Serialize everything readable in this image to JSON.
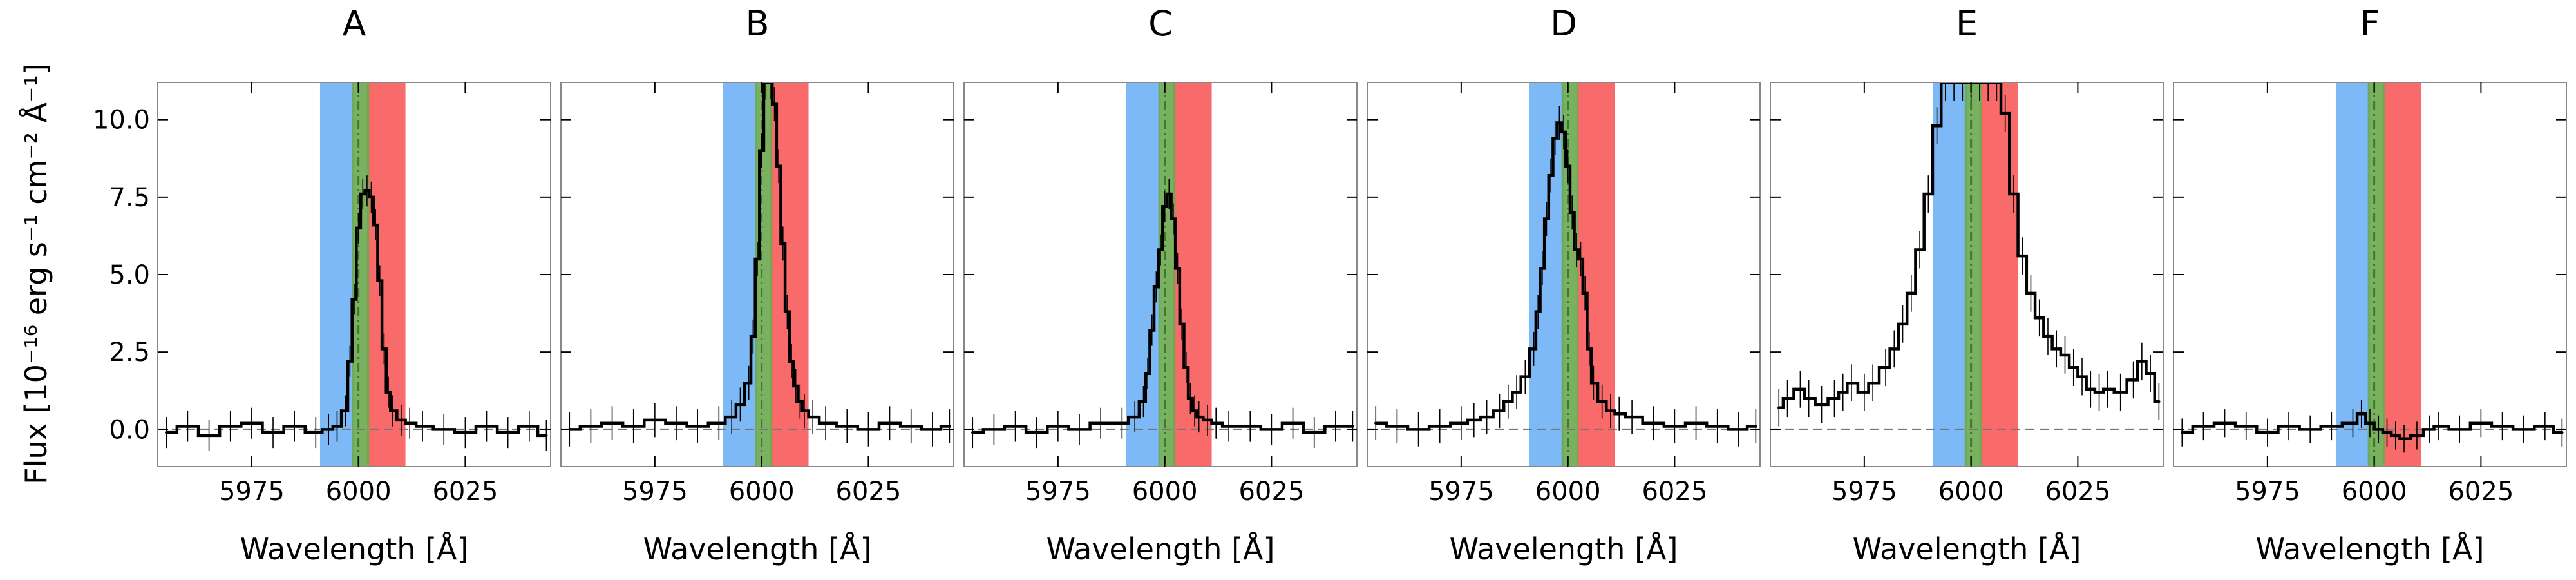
{
  "figure": {
    "ylabel": "Flux [10⁻¹⁶ erg s⁻¹ cm⁻² Å⁻¹]",
    "xlabel": "Wavelength [Å]"
  },
  "colors": {
    "blue_band": "#7db9f7",
    "green_band": "#6aa84f",
    "red_band": "#f96a6a",
    "line": "#000000",
    "zero_line": "#777777"
  },
  "chart_data": [
    {
      "type": "line",
      "title": "A",
      "xlabel": "Wavelength [Å]",
      "xlim": [
        5953,
        6045
      ],
      "ylim": [
        -1.2,
        11.2
      ],
      "xticks": [
        5975,
        6000,
        6025
      ],
      "yticks": [
        0.0,
        2.5,
        5.0,
        7.5,
        10.0
      ],
      "bands": {
        "blue": [
          5991,
          5999
        ],
        "green": [
          5998.5,
          6002.5
        ],
        "red": [
          6002,
          6011
        ]
      },
      "center_line": 6000,
      "zero_line": true,
      "series": [
        {
          "x": [
            5955,
            5960,
            5965,
            5970,
            5975,
            5980,
            5985,
            5990,
            5993,
            5995,
            5997,
            5998,
            5999,
            6000,
            6001,
            6002,
            6003,
            6004,
            6005,
            6006,
            6007,
            6008,
            6010,
            6012,
            6015,
            6020,
            6025,
            6030,
            6035,
            6040,
            6044
          ],
          "y": [
            -0.1,
            0.1,
            -0.2,
            0.1,
            0.2,
            -0.1,
            0.1,
            -0.1,
            0.0,
            0.1,
            0.6,
            2.2,
            4.2,
            6.5,
            7.6,
            7.7,
            7.5,
            6.6,
            4.8,
            2.6,
            1.2,
            0.6,
            0.3,
            0.2,
            0.1,
            0.0,
            -0.1,
            0.1,
            -0.1,
            0.1,
            -0.2
          ],
          "err": 0.5
        }
      ]
    },
    {
      "type": "line",
      "title": "B",
      "xlabel": "Wavelength [Å]",
      "xlim": [
        5953,
        6045
      ],
      "ylim": [
        -1.2,
        11.2
      ],
      "xticks": [
        5975,
        6000,
        6025
      ],
      "yticks": [
        0.0,
        2.5,
        5.0,
        7.5,
        10.0
      ],
      "bands": {
        "blue": [
          5991,
          5999
        ],
        "green": [
          5998.5,
          6002.5
        ],
        "red": [
          6002,
          6011
        ]
      },
      "center_line": 6000,
      "zero_line": true,
      "series": [
        {
          "x": [
            5955,
            5960,
            5965,
            5970,
            5975,
            5980,
            5985,
            5990,
            5993,
            5995,
            5997,
            5998,
            5999,
            6000,
            6001,
            6002,
            6003,
            6004,
            6005,
            6006,
            6007,
            6008,
            6009,
            6010,
            6012,
            6015,
            6020,
            6025,
            6030,
            6035,
            6040,
            6044
          ],
          "y": [
            0.0,
            0.1,
            0.2,
            0.1,
            0.3,
            0.2,
            0.1,
            0.2,
            0.4,
            0.8,
            1.5,
            3.0,
            5.5,
            9.0,
            11.2,
            11.2,
            10.5,
            8.5,
            6.0,
            3.8,
            2.2,
            1.4,
            0.9,
            0.6,
            0.4,
            0.2,
            0.1,
            0.0,
            0.2,
            0.1,
            0.0,
            0.1
          ],
          "err": 0.55
        }
      ]
    },
    {
      "type": "line",
      "title": "C",
      "xlabel": "Wavelength [Å]",
      "xlim": [
        5953,
        6045
      ],
      "ylim": [
        -1.2,
        11.2
      ],
      "xticks": [
        5975,
        6000,
        6025
      ],
      "yticks": [
        0.0,
        2.5,
        5.0,
        7.5,
        10.0
      ],
      "bands": {
        "blue": [
          5991,
          5999
        ],
        "green": [
          5998.5,
          6002.5
        ],
        "red": [
          6002,
          6011
        ]
      },
      "center_line": 6000,
      "zero_line": true,
      "series": [
        {
          "x": [
            5955,
            5960,
            5965,
            5970,
            5975,
            5980,
            5985,
            5990,
            5993,
            5995,
            5996,
            5997,
            5998,
            5999,
            6000,
            6001,
            6002,
            6003,
            6004,
            6005,
            6006,
            6007,
            6008,
            6010,
            6012,
            6015,
            6020,
            6025,
            6030,
            6035,
            6040,
            6044
          ],
          "y": [
            -0.1,
            0.0,
            0.1,
            -0.1,
            0.1,
            0.0,
            0.2,
            0.2,
            0.4,
            0.9,
            1.8,
            3.2,
            4.6,
            5.8,
            7.2,
            7.6,
            6.8,
            5.2,
            3.4,
            2.0,
            1.0,
            0.6,
            0.4,
            0.3,
            0.2,
            0.1,
            0.1,
            0.0,
            0.2,
            -0.1,
            0.1,
            0.1
          ],
          "err": 0.5
        }
      ]
    },
    {
      "type": "line",
      "title": "D",
      "xlabel": "Wavelength [Å]",
      "xlim": [
        5953,
        6045
      ],
      "ylim": [
        -1.2,
        11.2
      ],
      "xticks": [
        5975,
        6000,
        6025
      ],
      "yticks": [
        0.0,
        2.5,
        5.0,
        7.5,
        10.0
      ],
      "bands": {
        "blue": [
          5991,
          5999
        ],
        "green": [
          5998.5,
          6002.5
        ],
        "red": [
          6002,
          6011
        ]
      },
      "center_line": 6000,
      "zero_line": true,
      "series": [
        {
          "x": [
            5955,
            5960,
            5965,
            5970,
            5975,
            5978,
            5981,
            5984,
            5986,
            5988,
            5990,
            5992,
            5993,
            5994,
            5995,
            5996,
            5997,
            5998,
            5999,
            6000,
            6001,
            6002,
            6003,
            6004,
            6005,
            6006,
            6008,
            6010,
            6012,
            6015,
            6020,
            6025,
            6030,
            6035,
            6040,
            6044
          ],
          "y": [
            0.2,
            0.1,
            0.0,
            0.1,
            0.2,
            0.3,
            0.4,
            0.6,
            0.9,
            1.2,
            1.7,
            2.6,
            3.8,
            5.2,
            6.8,
            8.2,
            9.4,
            9.9,
            9.6,
            8.5,
            7.0,
            5.8,
            5.5,
            4.4,
            2.6,
            1.5,
            0.9,
            0.6,
            0.5,
            0.4,
            0.2,
            0.1,
            0.2,
            0.1,
            0.0,
            0.1
          ],
          "err": 0.55
        }
      ]
    },
    {
      "type": "line",
      "title": "E",
      "xlabel": "Wavelength [Å]",
      "xlim": [
        5953,
        6045
      ],
      "ylim": [
        -1.2,
        11.2
      ],
      "xticks": [
        5975,
        6000,
        6025
      ],
      "yticks": [
        0.0,
        2.5,
        5.0,
        7.5,
        10.0
      ],
      "bands": {
        "blue": [
          5991,
          5999
        ],
        "green": [
          5998.5,
          6002.5
        ],
        "red": [
          6002,
          6011
        ]
      },
      "center_line": 6000,
      "zero_line": true,
      "series": [
        {
          "x": [
            5955,
            5957,
            5960,
            5962,
            5965,
            5968,
            5970,
            5972,
            5975,
            5977,
            5980,
            5982,
            5984,
            5986,
            5988,
            5990,
            5992,
            5994,
            5996,
            5998,
            6000,
            6002,
            6004,
            6006,
            6008,
            6010,
            6012,
            6014,
            6016,
            6018,
            6020,
            6022,
            6024,
            6026,
            6028,
            6030,
            6032,
            6035,
            6038,
            6040,
            6042,
            6044
          ],
          "y": [
            0.7,
            1.0,
            1.3,
            1.0,
            0.8,
            1.0,
            1.2,
            1.5,
            1.2,
            1.5,
            2.0,
            2.6,
            3.4,
            4.4,
            5.8,
            7.6,
            9.8,
            11.2,
            11.2,
            11.2,
            11.2,
            11.2,
            11.2,
            11.2,
            10.2,
            7.6,
            5.6,
            4.4,
            3.6,
            3.0,
            2.6,
            2.4,
            2.0,
            1.7,
            1.3,
            1.2,
            1.3,
            1.2,
            1.6,
            2.2,
            1.8,
            0.9
          ],
          "err": 0.6
        }
      ]
    },
    {
      "type": "line",
      "title": "F",
      "xlabel": "Wavelength [Å]",
      "xlim": [
        5953,
        6045
      ],
      "ylim": [
        -1.2,
        11.2
      ],
      "xticks": [
        5975,
        6000,
        6025
      ],
      "yticks": [
        0.0,
        2.5,
        5.0,
        7.5,
        10.0
      ],
      "bands": {
        "blue": [
          5991,
          5999
        ],
        "green": [
          5998.5,
          6002.5
        ],
        "red": [
          6002,
          6011
        ]
      },
      "center_line": 6000,
      "zero_line": true,
      "series": [
        {
          "x": [
            5955,
            5960,
            5965,
            5970,
            5975,
            5980,
            5985,
            5990,
            5995,
            5997,
            5999,
            6001,
            6003,
            6005,
            6007,
            6010,
            6013,
            6015,
            6020,
            6025,
            6030,
            6035,
            6040,
            6044
          ],
          "y": [
            -0.1,
            0.1,
            0.2,
            0.1,
            -0.1,
            0.1,
            0.0,
            0.1,
            0.2,
            0.5,
            0.2,
            0.0,
            -0.1,
            -0.2,
            -0.3,
            -0.2,
            0.0,
            0.1,
            0.0,
            0.2,
            0.1,
            0.0,
            0.1,
            -0.1
          ],
          "err": 0.45
        }
      ]
    }
  ]
}
